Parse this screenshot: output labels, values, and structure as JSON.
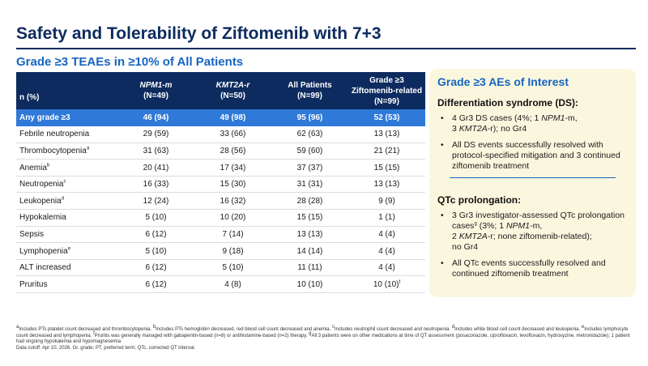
{
  "title": "Safety and Tolerability of Ziftomenib with 7+3",
  "subtitle": "Grade ≥3 TEAEs in ≥10% of All Patients",
  "table": {
    "headers": [
      {
        "line1": "n (%)",
        "line2": ""
      },
      {
        "line1": "NPM1-m",
        "line2": "(N=49)"
      },
      {
        "line1": "KMT2A-r",
        "line2": "(N=50)"
      },
      {
        "line1": "All Patients",
        "line2": "(N=99)"
      },
      {
        "line1": "Grade ≥3",
        "line2": "Ziftomenib-related",
        "line3": "(N=99)"
      }
    ],
    "rows": [
      {
        "ae": "Any grade ≥3",
        "sup": "",
        "npm1": "46 (94)",
        "kmt2a": "49 (98)",
        "all": "95 (96)",
        "related": "52 (53)",
        "related_sup": ""
      },
      {
        "ae": "Febrile neutropenia",
        "sup": "",
        "npm1": "29 (59)",
        "kmt2a": "33 (66)",
        "all": "62 (63)",
        "related": "13 (13)",
        "related_sup": ""
      },
      {
        "ae": "Thrombocytopenia",
        "sup": "a",
        "npm1": "31 (63)",
        "kmt2a": "28 (56)",
        "all": "59 (60)",
        "related": "21 (21)",
        "related_sup": ""
      },
      {
        "ae": "Anemia",
        "sup": "b",
        "npm1": "20 (41)",
        "kmt2a": "17 (34)",
        "all": "37 (37)",
        "related": "15 (15)",
        "related_sup": ""
      },
      {
        "ae": "Neutropenia",
        "sup": "c",
        "npm1": "16 (33)",
        "kmt2a": "15 (30)",
        "all": "31 (31)",
        "related": "13 (13)",
        "related_sup": ""
      },
      {
        "ae": "Leukopenia",
        "sup": "d",
        "npm1": "12 (24)",
        "kmt2a": "16 (32)",
        "all": "28 (28)",
        "related": "9 (9)",
        "related_sup": ""
      },
      {
        "ae": "Hypokalemia",
        "sup": "",
        "npm1": "5 (10)",
        "kmt2a": "10 (20)",
        "all": "15 (15)",
        "related": "1 (1)",
        "related_sup": ""
      },
      {
        "ae": "Sepsis",
        "sup": "",
        "npm1": "6 (12)",
        "kmt2a": "7 (14)",
        "all": "13 (13)",
        "related": "4 (4)",
        "related_sup": ""
      },
      {
        "ae": "Lymphopenia",
        "sup": "e",
        "npm1": "5 (10)",
        "kmt2a": "9 (18)",
        "all": "14 (14)",
        "related": "4 (4)",
        "related_sup": ""
      },
      {
        "ae": "ALT increased",
        "sup": "",
        "npm1": "6 (12)",
        "kmt2a": "5 (10)",
        "all": "11 (11)",
        "related": "4 (4)",
        "related_sup": ""
      },
      {
        "ae": "Pruritus",
        "sup": "",
        "npm1": "6 (12)",
        "kmt2a": "4 (8)",
        "all": "10 (10)",
        "related": "10 (10)",
        "related_sup": "f"
      }
    ]
  },
  "aoi": {
    "title": "Grade ≥3 AEs of Interest",
    "ds": {
      "heading": "Differentiation syndrome (DS):",
      "b1_a": "4 Gr3 DS cases (4%; 1 ",
      "b1_npm": "NPM1",
      "b1_b": "-m,",
      "b1_c": "3 ",
      "b1_kmt": "KMT2A",
      "b1_d": "-r); no Gr4",
      "b2": "All DS events successfully resolved with protocol-specified mitigation and 3 continued ziftomenib treatment"
    },
    "qtc": {
      "heading": "QTc prolongation:",
      "b1_a": "3 Gr3 investigator-assessed QTc prolongation cases",
      "b1_sup": "g",
      "b1_b": " (3%; 1 ",
      "b1_npm": "NPM1",
      "b1_c": "-m,",
      "b1_d": "2 ",
      "b1_kmt": "KMT2A",
      "b1_e": "-r; none ziftomenib-related);",
      "b1_f": "no Gr4",
      "b2": "All QTc events successfully resolved and continued ziftomenib treatment"
    }
  },
  "footnotes": {
    "f_a": "Includes PTs platelet count decreased and thrombocytopenia.",
    "f_b": "Includes PTs hemoglobin decreased, red blood cell count decreased and anemia.",
    "f_c": "Includes neutrophil count decreased and neutropenia.",
    "f_d": "Includes white blood cell count decreased and leukopenia.",
    "f_e": "Includes lymphocyte count decreased and lymphopenia.",
    "f_f": "Pruritis was generally managed with gabapentin-based (n=8) or antihistamine-based (n=2) therapy.",
    "f_g": "All 3 patients were on other medications at time of QT assessment (posaconazole, ciprofloxacin, levofloxacin, hydroxyzine, metronidazole); 1 patient had ongoing hypokalemia and hypomagnesemia",
    "line2": "Data cutoff: Apr 10, 2026. Gr, grade; PT, preferred term; QTc, corrected QT interval."
  }
}
